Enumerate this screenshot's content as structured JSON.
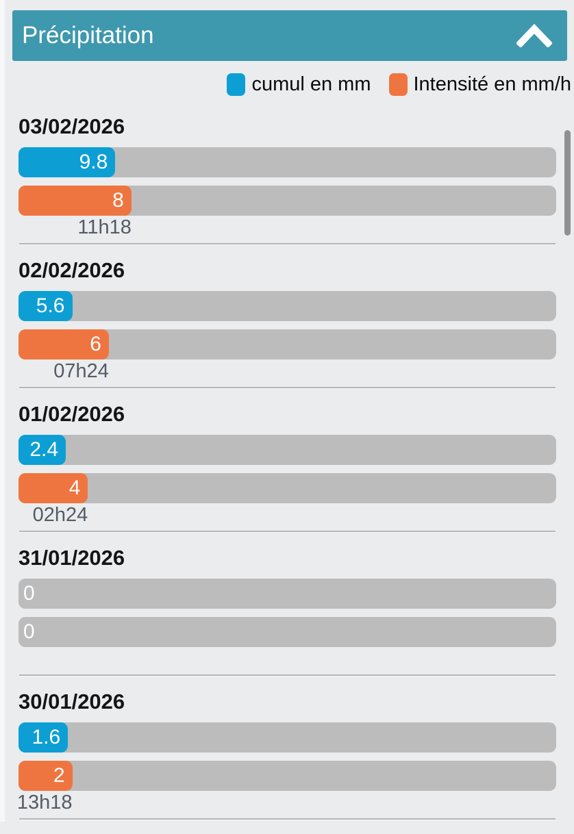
{
  "header": {
    "title": "Précipitation"
  },
  "legend": {
    "items": [
      {
        "label": "cumul en mm",
        "color": "#0d9fd4"
      },
      {
        "label": "Intensité en mm/h",
        "color": "#ef7540"
      }
    ]
  },
  "colors": {
    "header_bg": "#3e98ae",
    "cumul_bar": "#0d9fd4",
    "intensite_bar": "#ef7540",
    "bar_track": "#bcbcbc",
    "background": "#eaecee",
    "time_text": "#545b63",
    "divider": "#b3b5b7",
    "scroll_thumb": "#8e9093"
  },
  "chart_data": {
    "type": "bar",
    "orientation": "horizontal",
    "legend_position": "top",
    "series_labels": [
      "cumul en mm",
      "Intensité en mm/h"
    ],
    "days": [
      {
        "date": "03/02/2026",
        "cumul_mm": "9.8",
        "intensite_mm_h": "8",
        "time": "11h18",
        "cumul_pct": 18,
        "intensite_pct": 21
      },
      {
        "date": "02/02/2026",
        "cumul_mm": "5.6",
        "intensite_mm_h": "6",
        "time": "07h24",
        "cumul_pct": 10,
        "intensite_pct": 16.8
      },
      {
        "date": "01/02/2026",
        "cumul_mm": "2.4",
        "intensite_mm_h": "4",
        "time": "02h24",
        "cumul_pct": 8.8,
        "intensite_pct": 12.9
      },
      {
        "date": "31/01/2026",
        "cumul_mm": "0",
        "intensite_mm_h": "0",
        "time": "",
        "cumul_pct": 0,
        "intensite_pct": 0
      },
      {
        "date": "30/01/2026",
        "cumul_mm": "1.6",
        "intensite_mm_h": "2",
        "time": "13h18",
        "cumul_pct": 9.2,
        "intensite_pct": 10
      }
    ]
  }
}
